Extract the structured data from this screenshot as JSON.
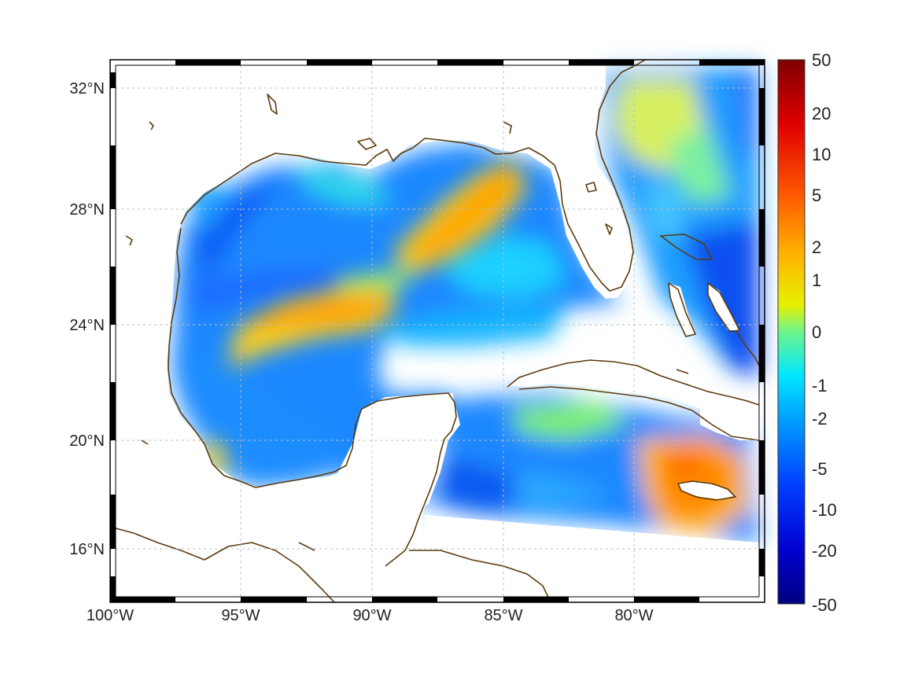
{
  "map": {
    "lon_ticks": [
      "100°W",
      "95°W",
      "90°W",
      "85°W",
      "80°W"
    ],
    "lat_ticks": [
      "32°N",
      "28°N",
      "24°N",
      "20°N",
      "16°N"
    ],
    "colorbar_ticks": [
      "50",
      "20",
      "10",
      "5",
      "2",
      "1",
      "0",
      "-1",
      "-2",
      "-5",
      "-10",
      "-20",
      "-50"
    ],
    "extent": {
      "lon_min": -100,
      "lon_max": -75,
      "lat_min": 14,
      "lat_max": 33
    },
    "colormap": "jet",
    "coast_color": "#5b3a0e",
    "grid": true,
    "colorbar_position": "right"
  }
}
